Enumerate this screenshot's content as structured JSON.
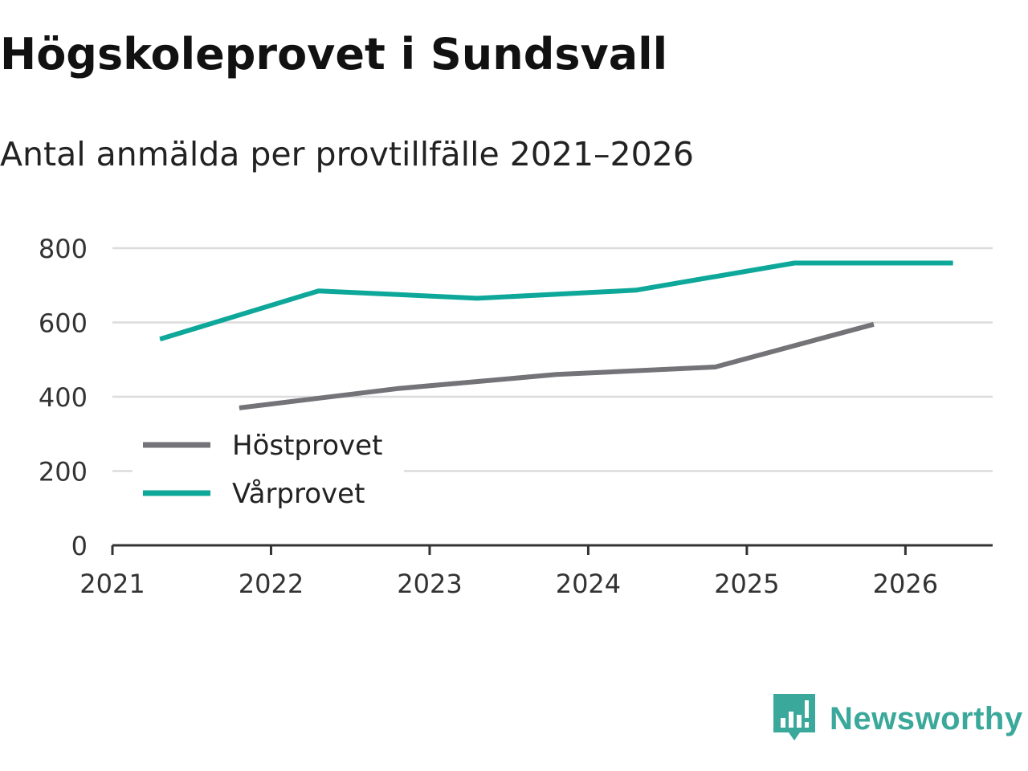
{
  "header": {
    "title": "Högskoleprovet i Sundsvall",
    "subtitle": "Antal anmälda per provtillfälle 2021–2026"
  },
  "brand": {
    "name": "Newsworthy",
    "color": "#3aa89a"
  },
  "chart_data": {
    "type": "line",
    "title": "Högskoleprovet i Sundsvall",
    "subtitle": "Antal anmälda per provtillfälle 2021–2026",
    "xlabel": "",
    "ylabel": "",
    "xlim": [
      2021,
      2026.55
    ],
    "ylim": [
      0,
      800
    ],
    "xticks": [
      2021,
      2022,
      2023,
      2024,
      2025,
      2026
    ],
    "yticks": [
      0,
      200,
      400,
      600,
      800
    ],
    "grid": true,
    "legend_position": "bottom-left",
    "series": [
      {
        "name": "Höstprovet",
        "color": "#737378",
        "x": [
          2021.8,
          2022.8,
          2023.8,
          2024.8,
          2025.8
        ],
        "values": [
          370,
          422,
          460,
          480,
          595
        ]
      },
      {
        "name": "Vårprovet",
        "color": "#0ea89a",
        "x": [
          2021.3,
          2022.3,
          2023.3,
          2024.3,
          2025.3,
          2026.3
        ],
        "values": [
          555,
          685,
          665,
          687,
          760,
          760
        ]
      }
    ]
  }
}
